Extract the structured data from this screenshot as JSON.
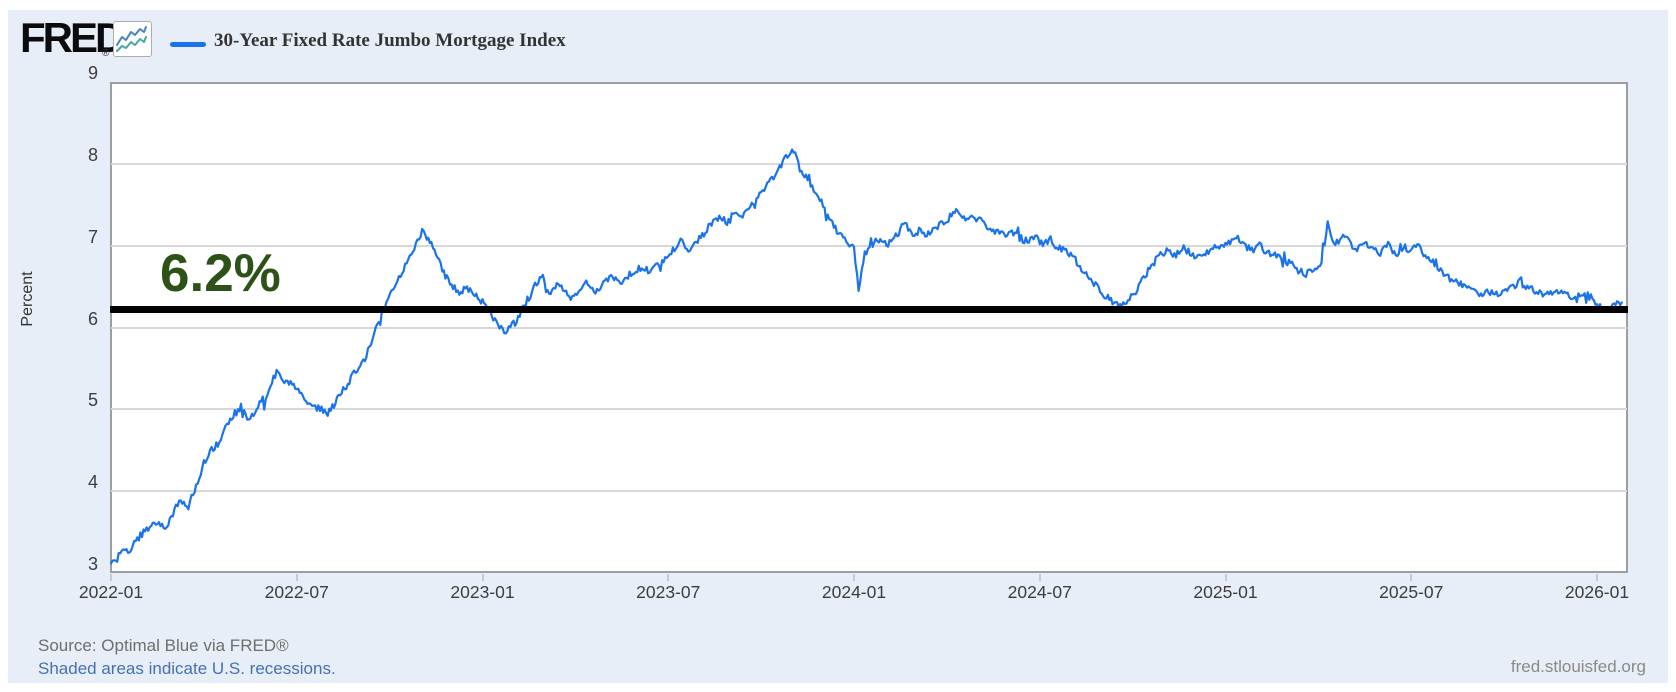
{
  "branding": {
    "logo_text": "FRED",
    "registered_mark": "®",
    "icon_name": "fred-sparkline-icon"
  },
  "legend": {
    "label": "30-Year Fixed Rate Jumbo Mortgage Index",
    "swatch_color": "#1a73e8"
  },
  "annotation": {
    "label": "6.2%",
    "value": 6.2,
    "text_color": "#2d5218",
    "line_color": "#000000"
  },
  "footer": {
    "source": "Source: Optimal Blue via FRED®",
    "recession_note": "Shaded areas indicate U.S. recessions.",
    "site": "fred.stlouisfed.org"
  },
  "colors": {
    "panel_background": "#e8eef7",
    "plot_background": "#ffffff",
    "plot_border": "#9e9e9e",
    "gridline": "#d8d8d8",
    "axis_text": "#3d3d3d",
    "series_blue": "#1a73e8"
  },
  "chart_data": {
    "type": "line",
    "title": "30-Year Fixed Rate Jumbo Mortgage Index",
    "xlabel": "",
    "ylabel": "Percent",
    "ylim": [
      3,
      9
    ],
    "yticks": [
      9,
      8,
      7,
      6,
      5,
      4,
      3
    ],
    "xtick_labels": [
      "2022-01",
      "2022-07",
      "2023-01",
      "2023-07",
      "2024-01",
      "2024-07",
      "2025-01",
      "2025-07",
      "2026-01"
    ],
    "x_unit": "months since 2022-01",
    "x_range_months": [
      0,
      48.8
    ],
    "grid": "horizontal-only",
    "legend_position": "top-left",
    "reference_line": {
      "value": 6.2,
      "label": "6.2%"
    },
    "series": [
      {
        "name": "30-Year Fixed Rate Jumbo Mortgage Index",
        "color": "#1a73e8",
        "units": "Percent",
        "points_month_value": [
          [
            0,
            3.12
          ],
          [
            0.2,
            3.18
          ],
          [
            0.4,
            3.3
          ],
          [
            0.6,
            3.27
          ],
          [
            0.8,
            3.4
          ],
          [
            1,
            3.47
          ],
          [
            1.2,
            3.55
          ],
          [
            1.45,
            3.62
          ],
          [
            1.7,
            3.55
          ],
          [
            1.9,
            3.65
          ],
          [
            2.1,
            3.8
          ],
          [
            2.3,
            3.88
          ],
          [
            2.5,
            3.82
          ],
          [
            2.75,
            4.05
          ],
          [
            3,
            4.35
          ],
          [
            3.25,
            4.52
          ],
          [
            3.5,
            4.6
          ],
          [
            3.75,
            4.8
          ],
          [
            4,
            4.95
          ],
          [
            4.2,
            5.02
          ],
          [
            4.4,
            4.88
          ],
          [
            4.6,
            4.95
          ],
          [
            4.85,
            5.08
          ],
          [
            5.1,
            5.2
          ],
          [
            5.35,
            5.48
          ],
          [
            5.5,
            5.38
          ],
          [
            5.75,
            5.32
          ],
          [
            6,
            5.28
          ],
          [
            6.25,
            5.15
          ],
          [
            6.5,
            5.02
          ],
          [
            6.75,
            5.0
          ],
          [
            7,
            4.95
          ],
          [
            7.25,
            5.08
          ],
          [
            7.5,
            5.22
          ],
          [
            7.75,
            5.38
          ],
          [
            8,
            5.52
          ],
          [
            8.25,
            5.65
          ],
          [
            8.5,
            5.92
          ],
          [
            8.75,
            6.18
          ],
          [
            9,
            6.42
          ],
          [
            9.25,
            6.6
          ],
          [
            9.5,
            6.75
          ],
          [
            9.75,
            6.95
          ],
          [
            10.05,
            7.18
          ],
          [
            10.3,
            7.05
          ],
          [
            10.55,
            6.85
          ],
          [
            10.8,
            6.62
          ],
          [
            11,
            6.52
          ],
          [
            11.25,
            6.42
          ],
          [
            11.5,
            6.48
          ],
          [
            11.75,
            6.4
          ],
          [
            12,
            6.32
          ],
          [
            12.25,
            6.18
          ],
          [
            12.5,
            6.05
          ],
          [
            12.7,
            5.93
          ],
          [
            12.9,
            6.0
          ],
          [
            13.1,
            6.08
          ],
          [
            13.4,
            6.3
          ],
          [
            13.7,
            6.5
          ],
          [
            13.95,
            6.65
          ],
          [
            14.15,
            6.38
          ],
          [
            14.4,
            6.55
          ],
          [
            14.65,
            6.45
          ],
          [
            14.9,
            6.35
          ],
          [
            15.15,
            6.45
          ],
          [
            15.4,
            6.55
          ],
          [
            15.65,
            6.45
          ],
          [
            15.9,
            6.52
          ],
          [
            16.15,
            6.62
          ],
          [
            16.4,
            6.55
          ],
          [
            16.65,
            6.62
          ],
          [
            16.9,
            6.68
          ],
          [
            17.15,
            6.75
          ],
          [
            17.4,
            6.68
          ],
          [
            17.65,
            6.75
          ],
          [
            17.9,
            6.82
          ],
          [
            18.15,
            6.95
          ],
          [
            18.4,
            7.05
          ],
          [
            18.65,
            6.95
          ],
          [
            18.9,
            7.05
          ],
          [
            19.15,
            7.15
          ],
          [
            19.4,
            7.28
          ],
          [
            19.65,
            7.35
          ],
          [
            19.9,
            7.28
          ],
          [
            20.15,
            7.42
          ],
          [
            20.4,
            7.35
          ],
          [
            20.65,
            7.48
          ],
          [
            20.9,
            7.58
          ],
          [
            21.15,
            7.72
          ],
          [
            21.4,
            7.85
          ],
          [
            21.65,
            8.0
          ],
          [
            21.9,
            8.12
          ],
          [
            22.05,
            8.15
          ],
          [
            22.25,
            7.95
          ],
          [
            22.5,
            7.82
          ],
          [
            22.75,
            7.62
          ],
          [
            23,
            7.48
          ],
          [
            23.25,
            7.32
          ],
          [
            23.5,
            7.15
          ],
          [
            23.75,
            7.05
          ],
          [
            24,
            6.95
          ],
          [
            24.15,
            6.45
          ],
          [
            24.35,
            6.92
          ],
          [
            24.6,
            7.0
          ],
          [
            24.85,
            7.1
          ],
          [
            25.1,
            7.02
          ],
          [
            25.35,
            7.12
          ],
          [
            25.6,
            7.28
          ],
          [
            25.85,
            7.15
          ],
          [
            26.1,
            7.18
          ],
          [
            26.35,
            7.12
          ],
          [
            26.6,
            7.22
          ],
          [
            26.85,
            7.28
          ],
          [
            27.1,
            7.35
          ],
          [
            27.35,
            7.42
          ],
          [
            27.6,
            7.28
          ],
          [
            27.85,
            7.35
          ],
          [
            28.1,
            7.3
          ],
          [
            28.35,
            7.22
          ],
          [
            28.6,
            7.18
          ],
          [
            28.85,
            7.12
          ],
          [
            29.1,
            7.18
          ],
          [
            29.35,
            7.1
          ],
          [
            29.6,
            7.05
          ],
          [
            29.85,
            7.12
          ],
          [
            30.1,
            7.02
          ],
          [
            30.35,
            7.08
          ],
          [
            30.6,
            6.98
          ],
          [
            30.85,
            6.95
          ],
          [
            31.1,
            6.85
          ],
          [
            31.35,
            6.72
          ],
          [
            31.6,
            6.6
          ],
          [
            31.85,
            6.5
          ],
          [
            32.1,
            6.4
          ],
          [
            32.35,
            6.3
          ],
          [
            32.6,
            6.27
          ],
          [
            32.85,
            6.35
          ],
          [
            33.1,
            6.45
          ],
          [
            33.35,
            6.6
          ],
          [
            33.6,
            6.75
          ],
          [
            33.85,
            6.88
          ],
          [
            34.1,
            6.95
          ],
          [
            34.35,
            6.88
          ],
          [
            34.6,
            6.98
          ],
          [
            34.85,
            6.92
          ],
          [
            35.1,
            6.85
          ],
          [
            35.35,
            6.92
          ],
          [
            35.6,
            6.98
          ],
          [
            35.85,
            7.0
          ],
          [
            36.1,
            7.05
          ],
          [
            36.35,
            7.1
          ],
          [
            36.6,
            7.0
          ],
          [
            36.85,
            6.95
          ],
          [
            37.1,
            7.0
          ],
          [
            37.35,
            6.92
          ],
          [
            37.6,
            6.88
          ],
          [
            37.85,
            6.82
          ],
          [
            38.1,
            6.78
          ],
          [
            38.35,
            6.7
          ],
          [
            38.6,
            6.65
          ],
          [
            38.85,
            6.7
          ],
          [
            39.1,
            6.78
          ],
          [
            39.3,
            7.28
          ],
          [
            39.5,
            7.0
          ],
          [
            39.75,
            7.1
          ],
          [
            40,
            7.05
          ],
          [
            40.25,
            6.95
          ],
          [
            40.5,
            7.02
          ],
          [
            40.75,
            6.95
          ],
          [
            41,
            6.92
          ],
          [
            41.25,
            7.02
          ],
          [
            41.5,
            6.9
          ],
          [
            41.75,
            6.98
          ],
          [
            42,
            6.95
          ],
          [
            42.25,
            6.98
          ],
          [
            42.5,
            6.85
          ],
          [
            42.75,
            6.78
          ],
          [
            43,
            6.68
          ],
          [
            43.25,
            6.6
          ],
          [
            43.5,
            6.55
          ],
          [
            43.75,
            6.5
          ],
          [
            44,
            6.45
          ],
          [
            44.25,
            6.4
          ],
          [
            44.5,
            6.44
          ],
          [
            44.75,
            6.4
          ],
          [
            45,
            6.44
          ],
          [
            45.25,
            6.48
          ],
          [
            45.5,
            6.55
          ],
          [
            45.75,
            6.5
          ],
          [
            46,
            6.45
          ],
          [
            46.25,
            6.4
          ],
          [
            46.5,
            6.44
          ],
          [
            46.75,
            6.42
          ],
          [
            47,
            6.4
          ],
          [
            47.25,
            6.36
          ],
          [
            47.5,
            6.42
          ],
          [
            47.75,
            6.38
          ],
          [
            48,
            6.3
          ],
          [
            48.2,
            6.22
          ],
          [
            48.4,
            6.18
          ],
          [
            48.55,
            6.3
          ],
          [
            48.7,
            6.32
          ],
          [
            48.8,
            6.28
          ]
        ]
      }
    ]
  }
}
